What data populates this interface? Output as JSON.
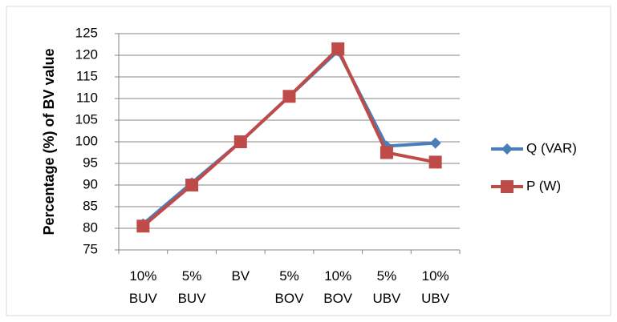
{
  "chart_data": {
    "type": "line",
    "y_axis_label": "Percentage (%) of BV value",
    "categories": [
      "10% BUV",
      "5% BUV",
      "BV",
      "5% BOV",
      "10% BOV",
      "5% UBV",
      "10% UBV"
    ],
    "series": [
      {
        "name": "Q (VAR)",
        "color": "#4a7ebb",
        "marker": "diamond",
        "values": [
          81,
          90.5,
          100,
          110.5,
          121,
          99,
          99.7
        ]
      },
      {
        "name": "P (W)",
        "color": "#be4b48",
        "marker": "square",
        "values": [
          80.5,
          90,
          100,
          110.5,
          121.5,
          97.5,
          95.3
        ]
      }
    ],
    "ylim": [
      75,
      125
    ],
    "yticks": [
      75,
      80,
      85,
      90,
      95,
      100,
      105,
      110,
      115,
      120,
      125
    ],
    "grid": true,
    "legend": "right"
  }
}
